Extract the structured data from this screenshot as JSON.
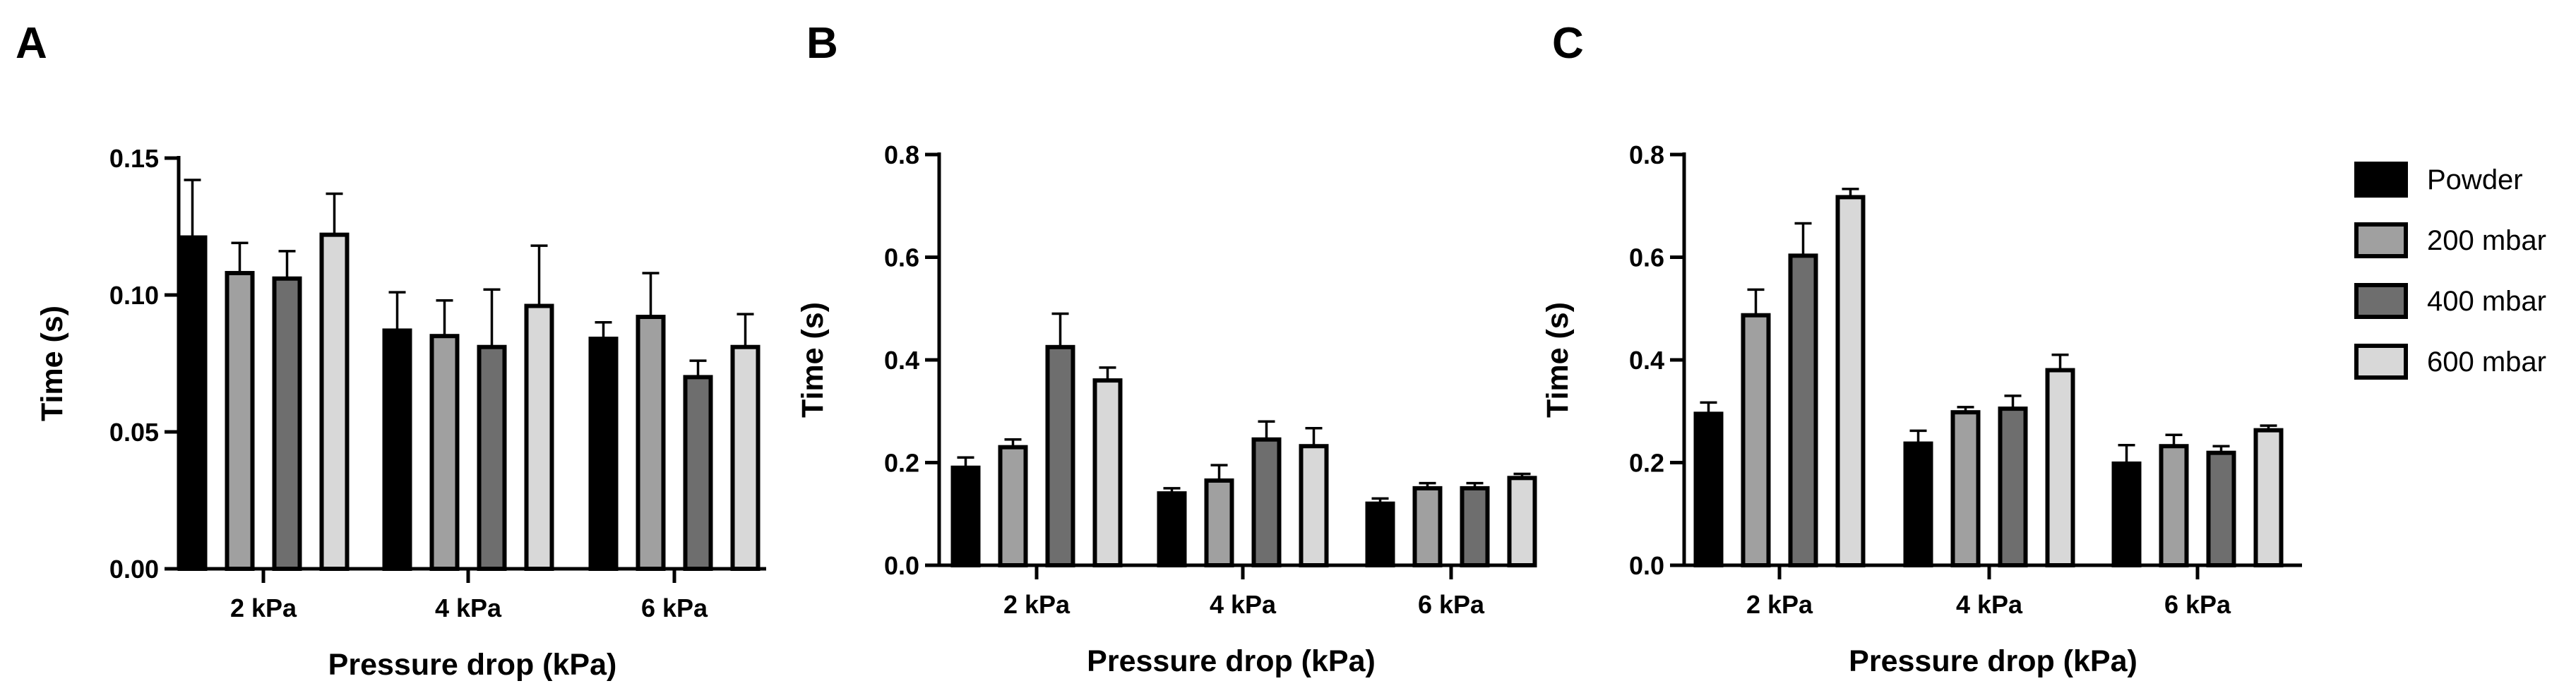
{
  "chart_data": [
    {
      "type": "bar",
      "panel_label": "A",
      "xlabel": "Pressure drop (kPa)",
      "ylabel": "Time (s)",
      "ylim": [
        0,
        0.15
      ],
      "yticks": [
        "0.00",
        "0.05",
        "0.10",
        "0.15"
      ],
      "ytick_values": [
        0,
        0.05,
        0.1,
        0.15
      ],
      "categories": [
        "2 kPa",
        "4 kPa",
        "6 kPa"
      ],
      "series": [
        {
          "name": "Powder",
          "values": [
            0.121,
            0.087,
            0.084
          ],
          "errors": [
            0.021,
            0.014,
            0.006
          ]
        },
        {
          "name": "200 mbar",
          "values": [
            0.108,
            0.085,
            0.092
          ],
          "errors": [
            0.011,
            0.013,
            0.016
          ]
        },
        {
          "name": "400 mbar",
          "values": [
            0.106,
            0.081,
            0.07
          ],
          "errors": [
            0.01,
            0.021,
            0.006
          ]
        },
        {
          "name": "600 mbar",
          "values": [
            0.122,
            0.096,
            0.081
          ],
          "errors": [
            0.015,
            0.022,
            0.012
          ]
        }
      ]
    },
    {
      "type": "bar",
      "panel_label": "B",
      "xlabel": "Pressure drop (kPa)",
      "ylabel": "Time (s)",
      "ylim": [
        0,
        0.8
      ],
      "yticks": [
        "0.0",
        "0.2",
        "0.4",
        "0.6",
        "0.8"
      ],
      "ytick_values": [
        0,
        0.2,
        0.4,
        0.6,
        0.8
      ],
      "categories": [
        "2 kPa",
        "4 kPa",
        "6 kPa"
      ],
      "series": [
        {
          "name": "Powder",
          "values": [
            0.19,
            0.14,
            0.12
          ],
          "errors": [
            0.02,
            0.01,
            0.01
          ]
        },
        {
          "name": "200 mbar",
          "values": [
            0.23,
            0.165,
            0.15
          ],
          "errors": [
            0.015,
            0.03,
            0.01
          ]
        },
        {
          "name": "400 mbar",
          "values": [
            0.425,
            0.245,
            0.15
          ],
          "errors": [
            0.065,
            0.035,
            0.01
          ]
        },
        {
          "name": "600 mbar",
          "values": [
            0.36,
            0.232,
            0.17
          ],
          "errors": [
            0.025,
            0.035,
            0.008
          ]
        }
      ]
    },
    {
      "type": "bar",
      "panel_label": "C",
      "xlabel": "Pressure drop (kPa)",
      "ylabel": "Time (s)",
      "ylim": [
        0,
        0.8
      ],
      "yticks": [
        "0.0",
        "0.2",
        "0.4",
        "0.6",
        "0.8"
      ],
      "ytick_values": [
        0,
        0.2,
        0.4,
        0.6,
        0.8
      ],
      "categories": [
        "2 kPa",
        "4 kPa",
        "6 kPa"
      ],
      "series": [
        {
          "name": "Powder",
          "values": [
            0.295,
            0.237,
            0.198
          ],
          "errors": [
            0.022,
            0.025,
            0.036
          ]
        },
        {
          "name": "200 mbar",
          "values": [
            0.487,
            0.298,
            0.232
          ],
          "errors": [
            0.05,
            0.01,
            0.022
          ]
        },
        {
          "name": "400 mbar",
          "values": [
            0.603,
            0.305,
            0.219
          ],
          "errors": [
            0.063,
            0.025,
            0.013
          ]
        },
        {
          "name": "600 mbar",
          "values": [
            0.717,
            0.38,
            0.263
          ],
          "errors": [
            0.016,
            0.03,
            0.009
          ]
        }
      ]
    }
  ],
  "legend": {
    "position": "right",
    "entries": [
      {
        "label": "Powder",
        "color": "#000000"
      },
      {
        "label": "200 mbar",
        "color": "#a0a0a0"
      },
      {
        "label": "400 mbar",
        "color": "#6e6e6e"
      },
      {
        "label": "600 mbar",
        "color": "#d8d8d8"
      }
    ]
  },
  "series_colors": [
    "#000000",
    "#a0a0a0",
    "#6e6e6e",
    "#d8d8d8"
  ]
}
